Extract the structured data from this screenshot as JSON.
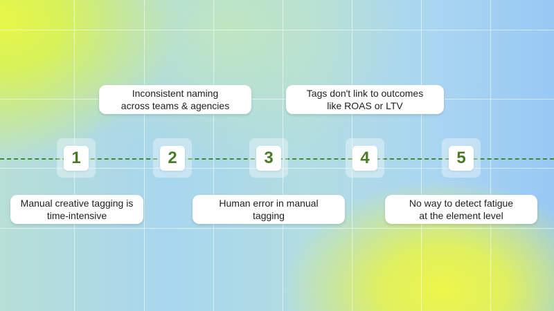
{
  "steps": [
    {
      "number": "1",
      "label": "Manual creative tagging is time-intensive"
    },
    {
      "number": "2",
      "label": "Inconsistent naming across teams & agencies"
    },
    {
      "number": "3",
      "label": "Human error in manual tagging"
    },
    {
      "number": "4",
      "label": "Tags don't link to outcomes like ROAS or LTV"
    },
    {
      "number": "5",
      "label": "No way to detect fatigue at the element level"
    }
  ],
  "colors": {
    "accent": "#4a7a26",
    "dashed_line": "#3f8a2a"
  }
}
